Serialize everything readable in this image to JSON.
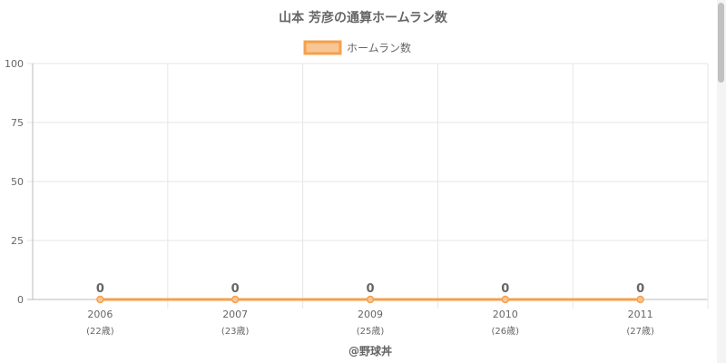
{
  "chart_data": {
    "type": "line",
    "title": "山本 芳彦の通算ホームラン数",
    "categories": [
      "2006",
      "2007",
      "2009",
      "2010",
      "2011"
    ],
    "category_sublabels": [
      "(22歳)",
      "(23歳)",
      "(25歳)",
      "(26歳)",
      "(27歳)"
    ],
    "series": [
      {
        "name": "ホームラン数",
        "values": [
          0,
          0,
          0,
          0,
          0
        ]
      }
    ],
    "ylim": [
      0,
      100
    ],
    "yticks": [
      0,
      25,
      50,
      75,
      100
    ],
    "grid": true,
    "legend_position": "top-center",
    "line_color": "#f6a04d",
    "fill_color": "#f8c594",
    "footer": "@野球丼"
  }
}
